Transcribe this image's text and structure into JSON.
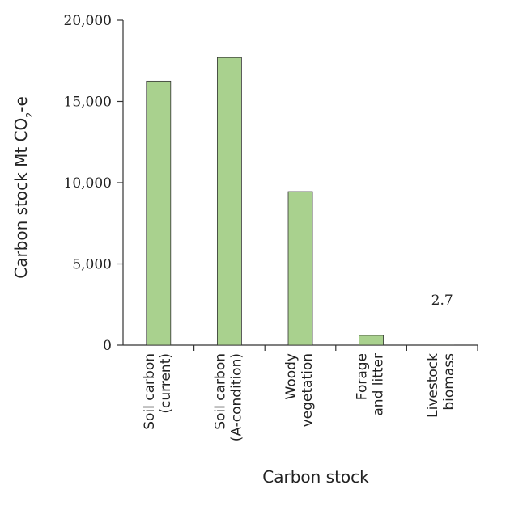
{
  "chart_data": {
    "type": "bar",
    "categories": [
      [
        "Soil carbon",
        "(current)"
      ],
      [
        "Soil carbon",
        "(A-condition)"
      ],
      [
        "Woody",
        "vegetation"
      ],
      [
        "Forage",
        "and litter"
      ],
      [
        "Livestock",
        "biomass"
      ]
    ],
    "values": [
      16250,
      17700,
      9450,
      600,
      2.7
    ],
    "data_labels": [
      "",
      "",
      "",
      "",
      "2.7"
    ],
    "xlabel": "Carbon stock",
    "ylabel": "Carbon stock Mt CO2-e",
    "ylabel_parts": {
      "main": "Carbon stock Mt CO",
      "sub": "2",
      "tail": "-e"
    },
    "ylim": [
      0,
      20000
    ],
    "yticks": [
      0,
      5000,
      10000,
      15000,
      20000
    ],
    "ytick_labels": [
      "0",
      "5,000",
      "10,000",
      "15,000",
      "20,000"
    ],
    "colors": {
      "bar_fill": "#a9d18e",
      "bar_stroke": "#333333",
      "axis": "#333333"
    },
    "grid": false,
    "legend": "none"
  }
}
